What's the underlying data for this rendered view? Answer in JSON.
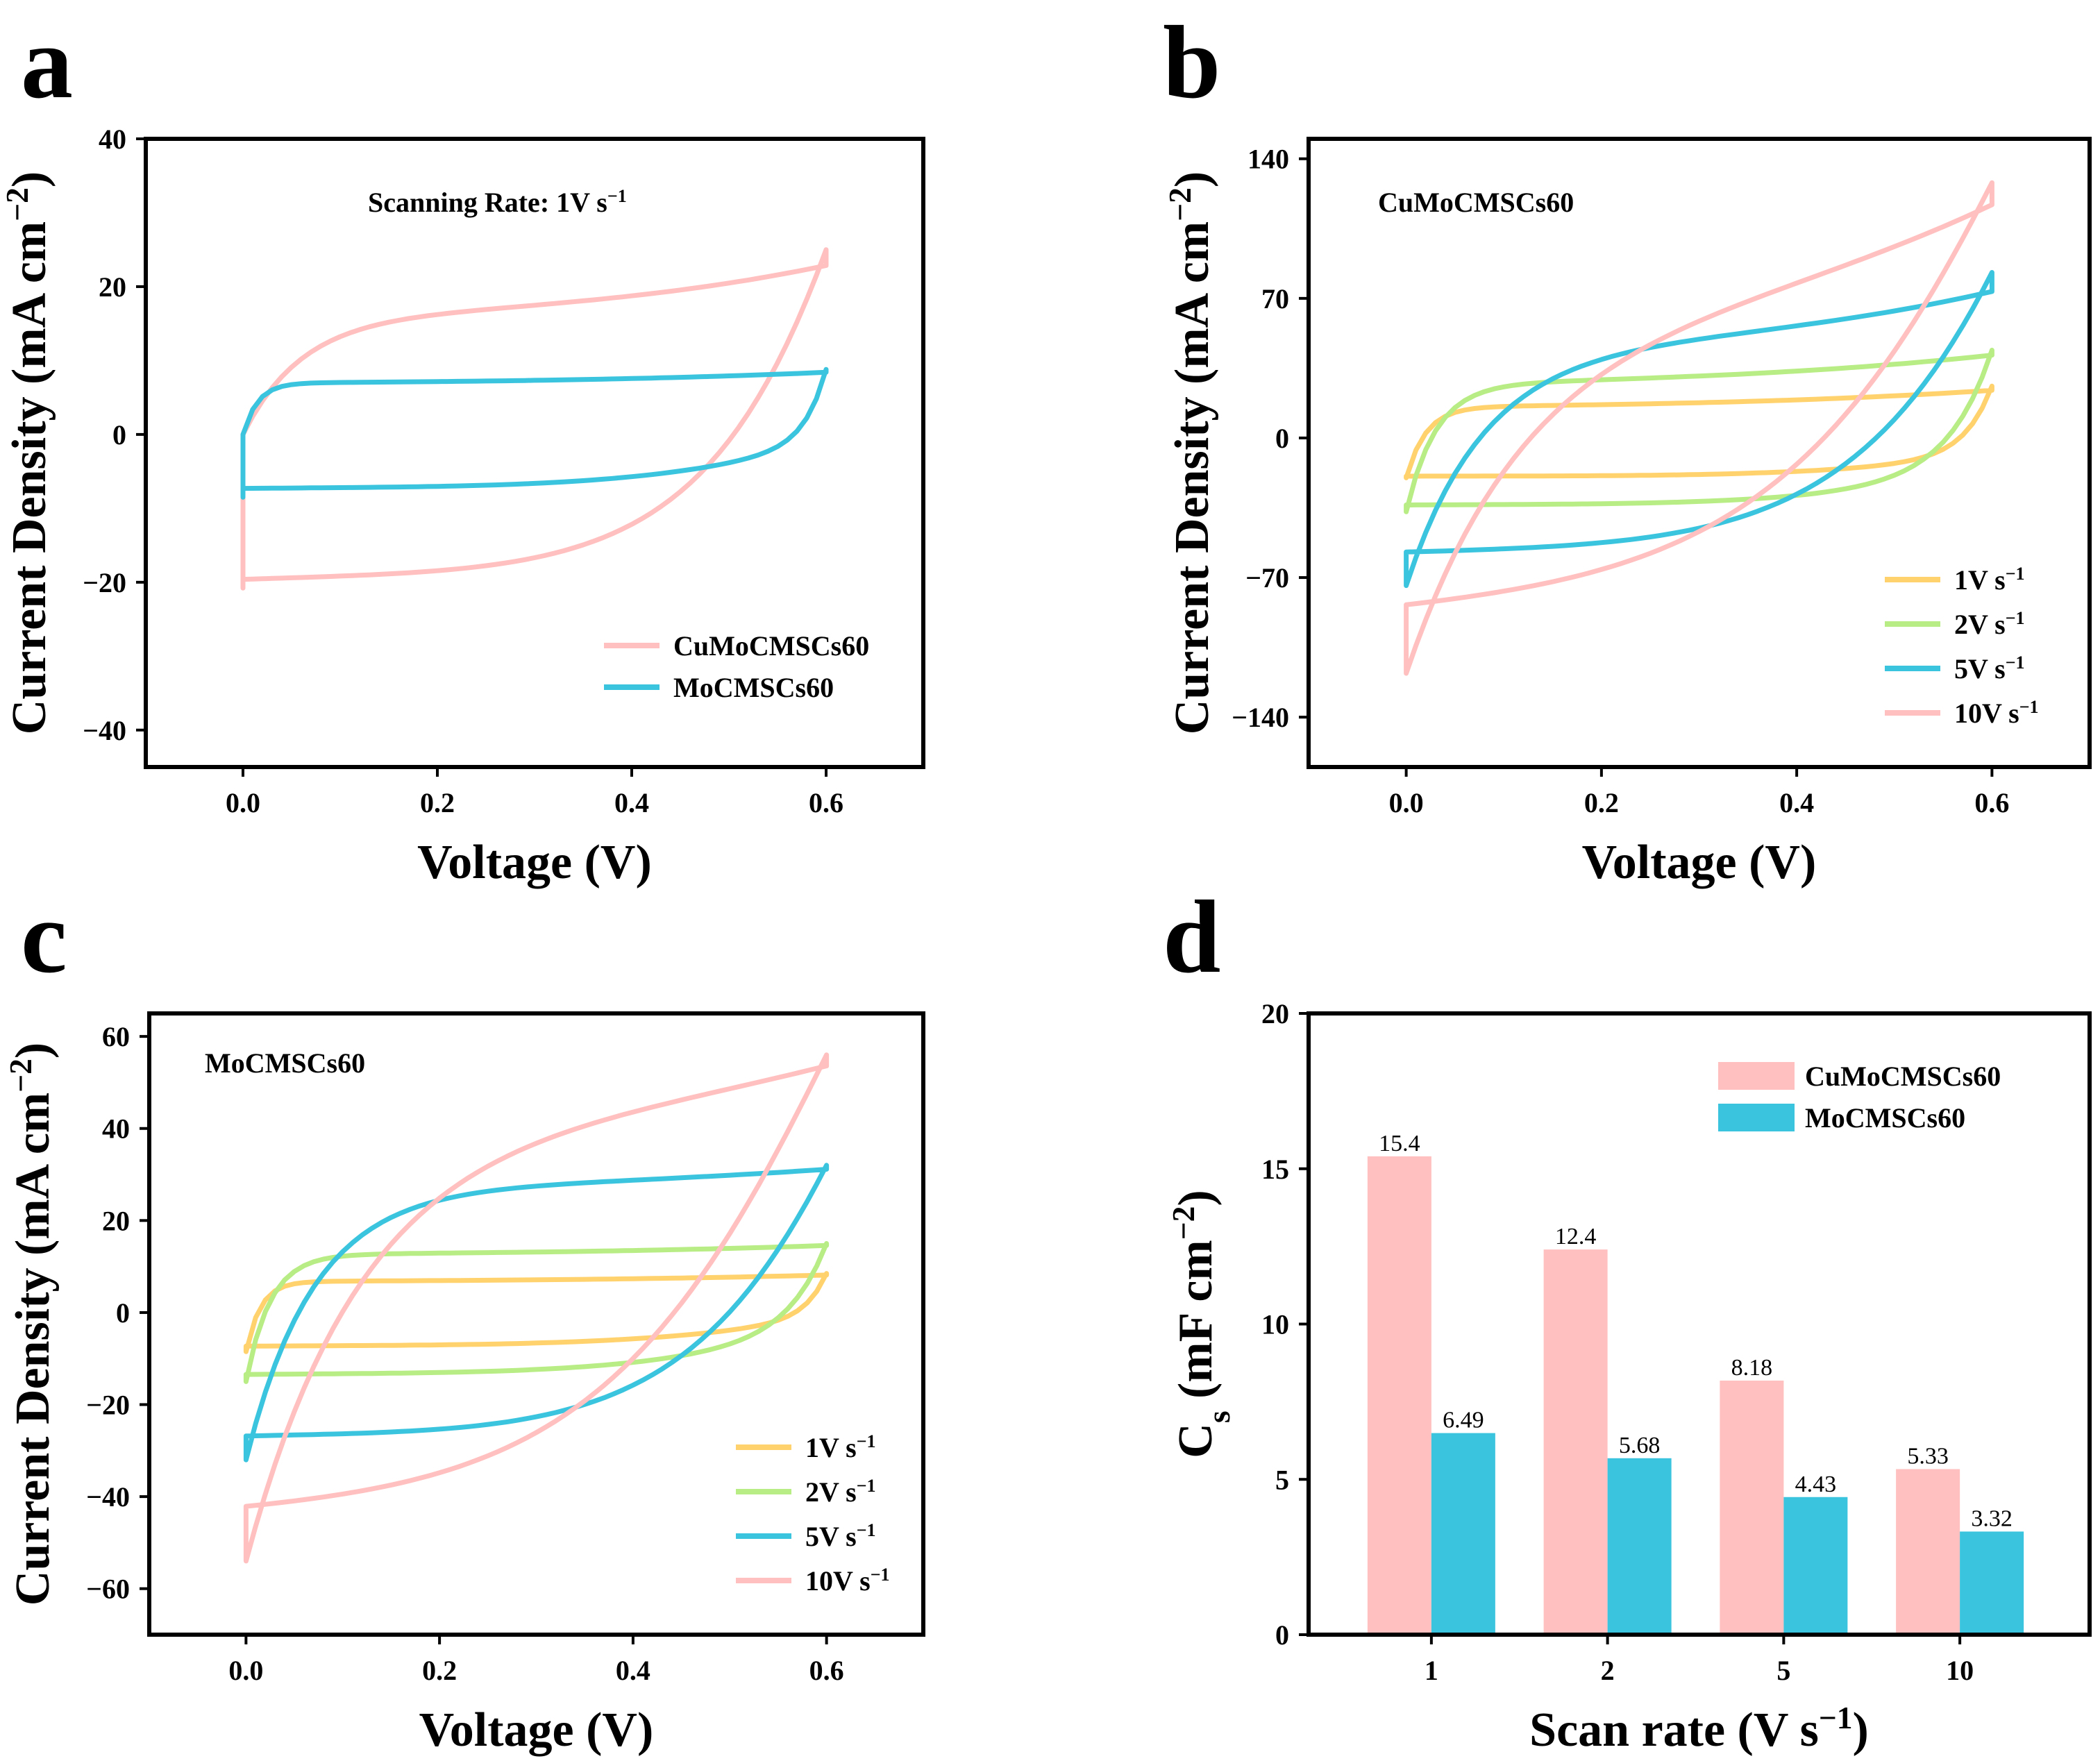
{
  "colors": {
    "pink": "#ffc0bf",
    "blue": "#3bc4de",
    "green": "#b8ec84",
    "yellow": "#ffd26e"
  },
  "chart_data": [
    {
      "id": "a",
      "type": "line",
      "panel_label": "a",
      "annotation": "Scanning Rate: 1V s",
      "annotation_sup": "−1",
      "xlabel": "Voltage (V)",
      "ylabel": "Current Density (mA cm",
      "ylabel_sup": "−2",
      "ylabel_end": ")",
      "xlim": [
        -0.1,
        0.7
      ],
      "ylim": [
        -45,
        40
      ],
      "xticks": [
        0.0,
        0.2,
        0.4,
        0.6
      ],
      "xtick_labels": [
        "0.0",
        "0.2",
        "0.4",
        "0.6"
      ],
      "yticks": [
        -40,
        -20,
        0,
        20,
        40
      ],
      "ytick_labels": [
        "−40",
        "−20",
        "0",
        "20",
        "40"
      ],
      "legend_position": "bottom-right",
      "series": [
        {
          "name": "CuMoCMSCs60",
          "color": "#ffc0bf",
          "vmin": 0,
          "vmax": 0.6,
          "i_top_start": 0,
          "i_bottom_start": -20.8,
          "top_slope": 8.5,
          "top_mid": 17.0,
          "top_end": 25.0,
          "bottom_slope": 15.0,
          "bottom_mid": -18.5,
          "bottom_end": -4.0,
          "tau": 0.06
        },
        {
          "name": "MoCMSCs60",
          "color": "#3bc4de",
          "vmin": 0,
          "vmax": 0.6,
          "i_top_start": 0,
          "i_bottom_start": -8.5,
          "top_slope": 2.0,
          "top_mid": 7.2,
          "top_end": 8.8,
          "bottom_slope": 4.0,
          "bottom_mid": -7.0,
          "bottom_end": -1.0,
          "tau": 0.015
        }
      ]
    },
    {
      "id": "b",
      "type": "line",
      "panel_label": "b",
      "annotation": "CuMoCMSCs60",
      "xlabel": "Voltage (V)",
      "ylabel": "Current Density (mA cm",
      "ylabel_sup": "−2",
      "ylabel_end": ")",
      "xlim": [
        -0.1,
        0.7
      ],
      "ylim": [
        -165,
        150
      ],
      "xticks": [
        0.0,
        0.2,
        0.4,
        0.6
      ],
      "xtick_labels": [
        "0.0",
        "0.2",
        "0.4",
        "0.6"
      ],
      "yticks": [
        -140,
        -70,
        0,
        70,
        140
      ],
      "ytick_labels": [
        "−140",
        "−70",
        "0",
        "70",
        "140"
      ],
      "legend_position": "bottom-right",
      "series": [
        {
          "name": "1V s",
          "sup": "−1",
          "color": "#ffd26e",
          "vmin": 0,
          "vmax": 0.6,
          "i_top_start": -20,
          "i_bottom_start": -20,
          "top_slope": 12,
          "top_mid": 17,
          "top_end": 26,
          "bottom_slope": 2,
          "bottom_mid": -19,
          "bottom_end": -8,
          "tau": 0.02
        },
        {
          "name": "2V s",
          "sup": "−1",
          "color": "#b8ec84",
          "vmin": 0,
          "vmax": 0.6,
          "i_top_start": -37,
          "i_bottom_start": -37,
          "top_slope": 25,
          "top_mid": 30,
          "top_end": 44,
          "bottom_slope": 8,
          "bottom_mid": -33,
          "bottom_end": -15,
          "tau": 0.03
        },
        {
          "name": "5V s",
          "sup": "−1",
          "color": "#3bc4de",
          "vmin": 0,
          "vmax": 0.6,
          "i_top_start": -74,
          "i_bottom_start": -74,
          "top_slope": 30,
          "top_mid": 50,
          "top_end": 83,
          "bottom_slope": 35,
          "bottom_mid": -55,
          "bottom_end": -20,
          "tau": 0.08
        },
        {
          "name": "10V s",
          "sup": "−1",
          "color": "#ffc0bf",
          "vmin": 0,
          "vmax": 0.6,
          "i_top_start": -118,
          "i_bottom_start": -118,
          "top_slope": 110,
          "top_mid": 70,
          "top_end": 128,
          "bottom_slope": 110,
          "bottom_mid": -80,
          "bottom_end": -30,
          "tau": 0.12
        }
      ]
    },
    {
      "id": "c",
      "type": "line",
      "panel_label": "c",
      "annotation": "MoCMSCs60",
      "xlabel": "Voltage (V)",
      "ylabel": "Current Density (mA cm",
      "ylabel_sup": "−2",
      "ylabel_end": ")",
      "xlim": [
        -0.1,
        0.7
      ],
      "ylim": [
        -70,
        65
      ],
      "xticks": [
        0.0,
        0.2,
        0.4,
        0.6
      ],
      "xtick_labels": [
        "0.0",
        "0.2",
        "0.4",
        "0.6"
      ],
      "yticks": [
        -60,
        -40,
        -20,
        0,
        20,
        40,
        60
      ],
      "ytick_labels": [
        "−60",
        "−40",
        "−20",
        "0",
        "20",
        "40",
        "60"
      ],
      "legend_position": "bottom-right",
      "series": [
        {
          "name": "1V s",
          "sup": "−1",
          "color": "#ffd26e",
          "vmin": 0,
          "vmax": 0.6,
          "i_top_start": -8.5,
          "i_bottom_start": -8.5,
          "top_slope": 2,
          "top_mid": 7,
          "top_end": 8.5,
          "bottom_slope": 4,
          "bottom_mid": -7,
          "bottom_end": -1,
          "tau": 0.015
        },
        {
          "name": "2V s",
          "sup": "−1",
          "color": "#b8ec84",
          "vmin": 0,
          "vmax": 0.6,
          "i_top_start": -15,
          "i_bottom_start": -15,
          "top_slope": 3,
          "top_mid": 13,
          "top_end": 15,
          "bottom_slope": 6,
          "bottom_mid": -13,
          "bottom_end": -3,
          "tau": 0.025
        },
        {
          "name": "5V s",
          "sup": "−1",
          "color": "#3bc4de",
          "vmin": 0,
          "vmax": 0.6,
          "i_top_start": -32,
          "i_bottom_start": -32,
          "top_slope": 6,
          "top_mid": 28,
          "top_end": 32,
          "bottom_slope": 12,
          "bottom_mid": -26,
          "bottom_end": -6,
          "tau": 0.07
        },
        {
          "name": "10V s",
          "sup": "−1",
          "color": "#ffc0bf",
          "vmin": 0,
          "vmax": 0.6,
          "i_top_start": -54,
          "i_bottom_start": -54,
          "top_slope": 25,
          "top_mid": 44,
          "top_end": 56,
          "bottom_slope": 30,
          "bottom_mid": -42,
          "bottom_end": -12,
          "tau": 0.12
        }
      ]
    },
    {
      "id": "d",
      "type": "bar",
      "panel_label": "d",
      "xlabel": "Scan rate (V s",
      "xlabel_sup": "−1",
      "xlabel_end": ")",
      "ylabel": "C",
      "ylabel_sub": "s",
      "ylabel_mid": " (mF cm",
      "ylabel_sup": "−2",
      "ylabel_end": ")",
      "ylim": [
        0,
        20
      ],
      "yticks": [
        0,
        5,
        10,
        15,
        20
      ],
      "ytick_labels": [
        "0",
        "5",
        "10",
        "15",
        "20"
      ],
      "categories": [
        "1",
        "2",
        "5",
        "10"
      ],
      "legend_position": "top-right",
      "series": [
        {
          "name": "CuMoCMSCs60",
          "color": "#ffc0bf",
          "values": [
            15.4,
            12.4,
            8.18,
            5.33
          ],
          "labels": [
            "15.4",
            "12.4",
            "8.18",
            "5.33"
          ]
        },
        {
          "name": "MoCMSCs60",
          "color": "#3bc4de",
          "values": [
            6.49,
            5.68,
            4.43,
            3.32
          ],
          "labels": [
            "6.49",
            "5.68",
            "4.43",
            "3.32"
          ]
        }
      ]
    }
  ]
}
